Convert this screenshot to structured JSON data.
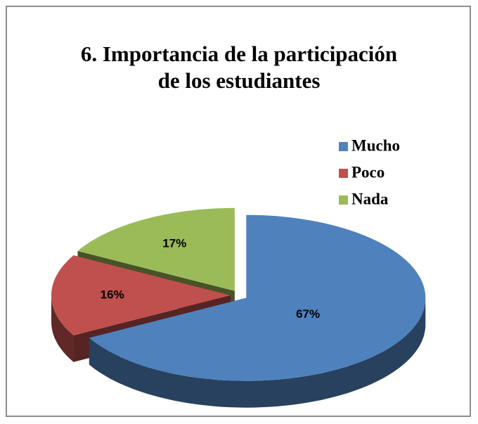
{
  "chart_data": {
    "type": "pie",
    "title": "6. Importancia de la participación de los estudiantes",
    "categories": [
      "Mucho",
      "Poco",
      "Nada"
    ],
    "values": [
      67,
      16,
      17
    ],
    "value_labels": [
      "67%",
      "16%",
      "17%"
    ],
    "colors": [
      "#4f81bd",
      "#c0504d",
      "#9bbb59"
    ],
    "legend": "right"
  }
}
